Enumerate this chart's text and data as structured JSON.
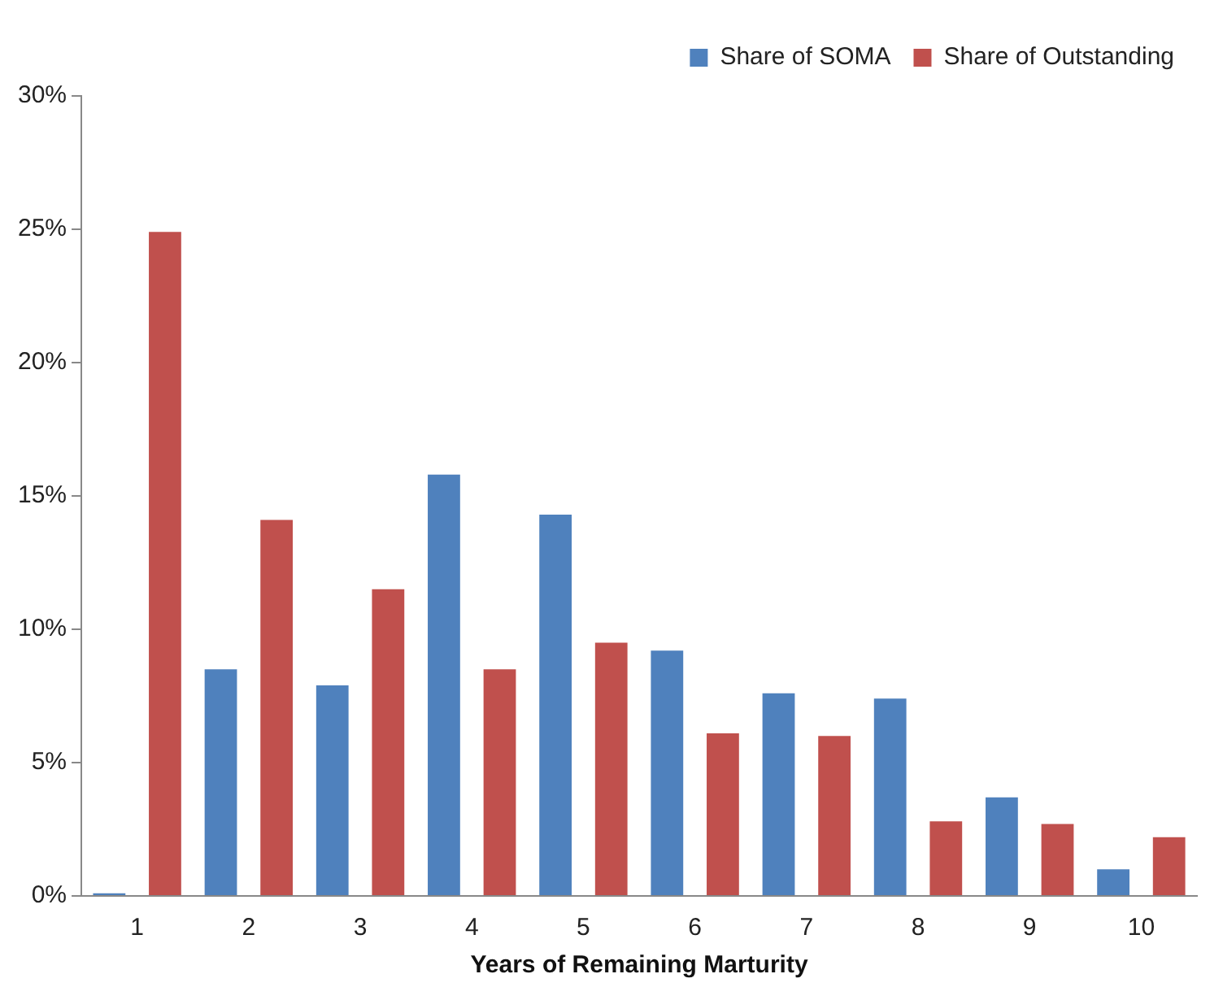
{
  "chart_data": {
    "type": "bar",
    "xlabel": "Years of Remaining Marturity",
    "categories": [
      "1",
      "2",
      "3",
      "4",
      "5",
      "6",
      "7",
      "8",
      "9",
      "10"
    ],
    "series": [
      {
        "name": "Share of SOMA",
        "color": "#4f81bd",
        "values": [
          0.1,
          8.5,
          7.9,
          15.8,
          14.3,
          9.2,
          7.6,
          7.4,
          3.7,
          1.0
        ]
      },
      {
        "name": "Share of Outstanding",
        "color": "#c0504d",
        "values": [
          24.9,
          14.1,
          11.5,
          8.5,
          9.5,
          6.1,
          6.0,
          2.8,
          2.7,
          2.2
        ]
      }
    ],
    "ylim": [
      0,
      30
    ],
    "yticks": [
      {
        "value": 0,
        "label": "0%"
      },
      {
        "value": 5,
        "label": "5%"
      },
      {
        "value": 10,
        "label": "10%"
      },
      {
        "value": 15,
        "label": "15%"
      },
      {
        "value": 20,
        "label": "20%"
      },
      {
        "value": 25,
        "label": "25%"
      },
      {
        "value": 30,
        "label": "30%"
      }
    ],
    "grid": false,
    "legend": "top right"
  }
}
